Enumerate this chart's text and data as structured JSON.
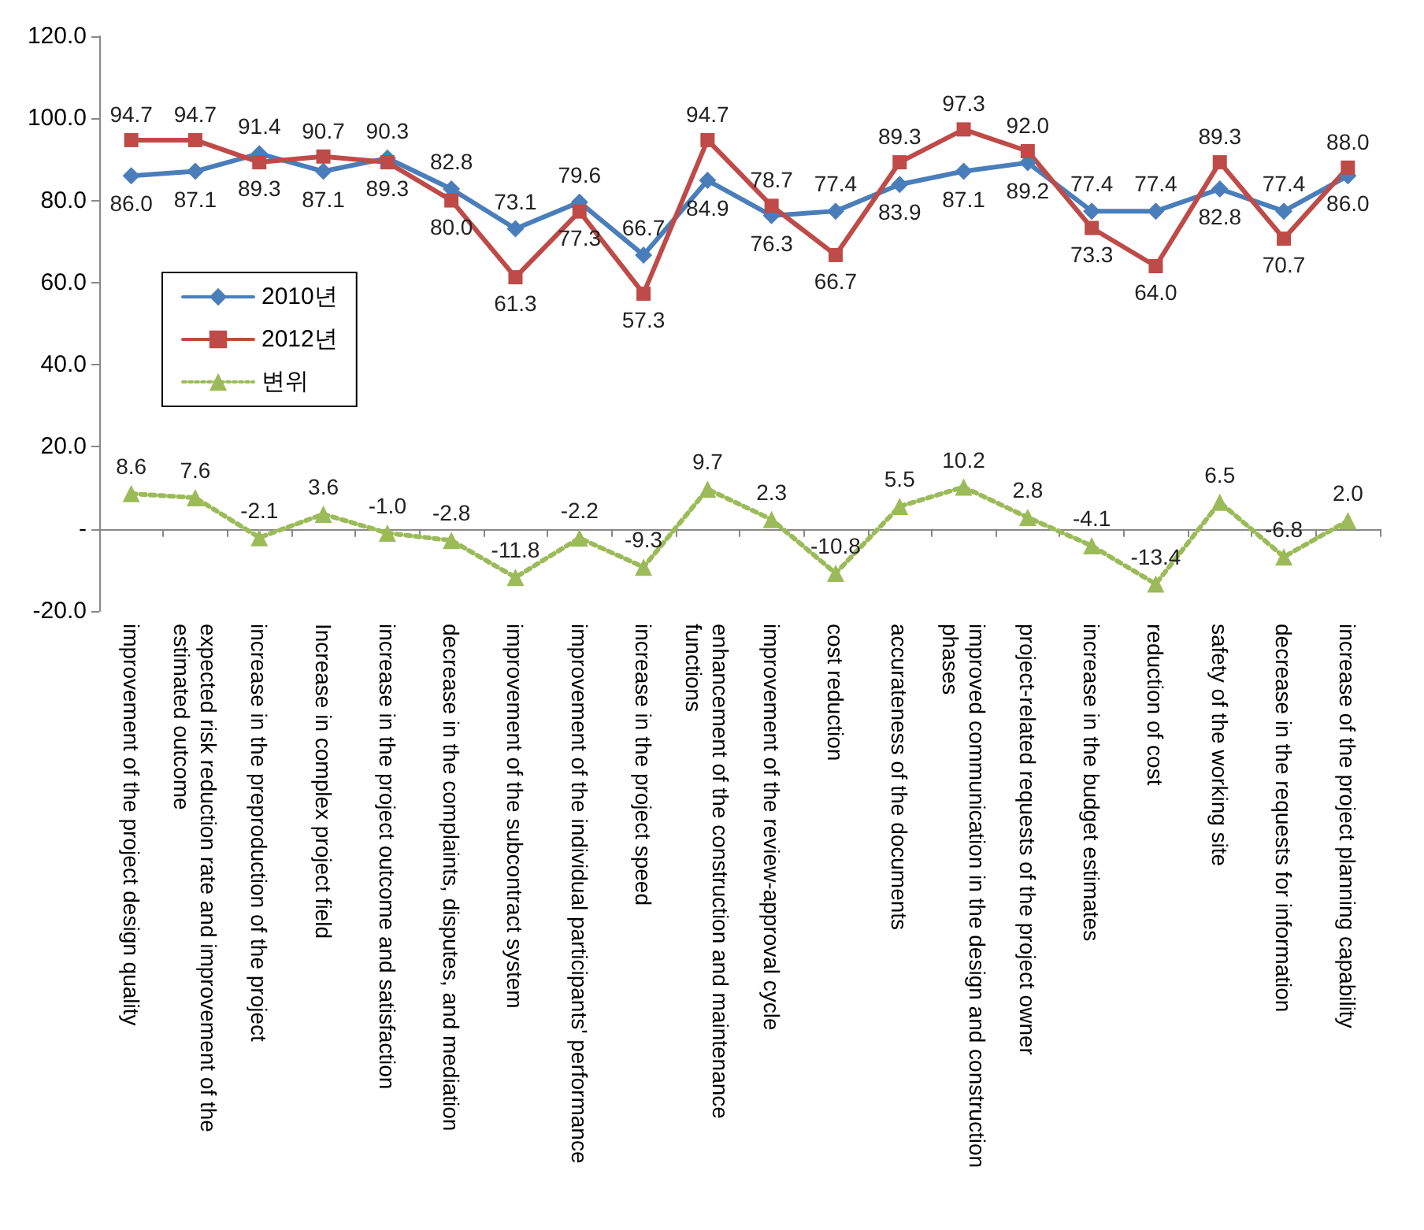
{
  "chart_data": {
    "type": "line",
    "categories": [
      "improvement of the project design quality",
      "expected risk reduction rate and improvement of the estimated outcome",
      "increase in the preproduction of the project",
      "Increase in complex project field",
      "increase in the project outcome and satisfaction",
      "decrease in the complaints, disputes, and mediation",
      "improvement of the subcontract system",
      "improvement of the individual participants' performance",
      "increase in the project speed",
      "enhancement of the construction and maintenance functions",
      "improvement of the review-approval cycle",
      "cost reduction",
      "accurateness of the documents",
      "improved communication in the design and construction phases",
      "project-related requests of the project owner",
      "increase in the budget estimates",
      "reduction of cost",
      "safety of the working site",
      "decrease in the requests for information",
      "increase of the project planning capability"
    ],
    "series": [
      {
        "name": "2010년",
        "color": "#4a7ebb",
        "marker": "diamond",
        "line_style": "solid",
        "values": [
          86.0,
          87.1,
          91.4,
          87.1,
          90.3,
          82.8,
          73.1,
          79.6,
          66.7,
          84.9,
          76.3,
          77.4,
          83.9,
          87.1,
          89.2,
          77.4,
          77.4,
          82.8,
          77.4,
          86.0
        ],
        "value_labels": [
          "86.0",
          "87.1",
          "91.4",
          "87.1",
          "90.3",
          "82.8",
          "73.1",
          "79.6",
          "66.7",
          "84.9",
          "76.3",
          "77.4",
          "83.9",
          "87.1",
          "89.2",
          "77.4",
          "77.4",
          "82.8",
          "77.4",
          "86.0"
        ]
      },
      {
        "name": "2012년",
        "color": "#be4b48",
        "marker": "square",
        "line_style": "solid",
        "values": [
          94.7,
          94.7,
          89.3,
          90.7,
          89.3,
          80.0,
          61.3,
          77.3,
          57.3,
          94.7,
          78.7,
          66.7,
          89.3,
          97.3,
          92.0,
          73.3,
          64.0,
          89.3,
          70.7,
          88.0
        ],
        "value_labels": [
          "94.7",
          "94.7",
          "89.3",
          "90.7",
          "89.3",
          "80.0",
          "61.3",
          "77.3",
          "57.3",
          "94.7",
          "78.7",
          "66.7",
          "89.3",
          "97.3",
          "92.0",
          "73.3",
          "64.0",
          "89.3",
          "70.7",
          "88.0"
        ]
      },
      {
        "name": "변위",
        "color": "#9bbb59",
        "marker": "triangle",
        "line_style": "dotted",
        "values": [
          8.6,
          7.6,
          -2.1,
          3.6,
          -1.0,
          -2.8,
          -11.8,
          -2.2,
          -9.3,
          9.7,
          2.3,
          -10.8,
          5.5,
          10.2,
          2.8,
          -4.1,
          -13.4,
          6.5,
          -6.8,
          2.0
        ],
        "value_labels": [
          "8.6",
          "7.6",
          "-2.1",
          "3.6",
          "-1.0",
          "-2.8",
          "-11.8",
          "-2.2",
          "-9.3",
          "9.7",
          "2.3",
          "-10.8",
          "5.5",
          "10.2",
          "2.8",
          "-4.1",
          "-13.4",
          "6.5",
          "-6.8",
          "2.0"
        ]
      }
    ],
    "ylim": [
      -20,
      120
    ],
    "yticks": [
      {
        "value": -20,
        "label": "-20.0"
      },
      {
        "value": 0,
        "label": "-"
      },
      {
        "value": 20,
        "label": "20.0"
      },
      {
        "value": 40,
        "label": "40.0"
      },
      {
        "value": 60,
        "label": "60.0"
      },
      {
        "value": 80,
        "label": "80.0"
      },
      {
        "value": 100,
        "label": "100.0"
      },
      {
        "value": 120,
        "label": "120.0"
      }
    ],
    "legend": "left"
  }
}
